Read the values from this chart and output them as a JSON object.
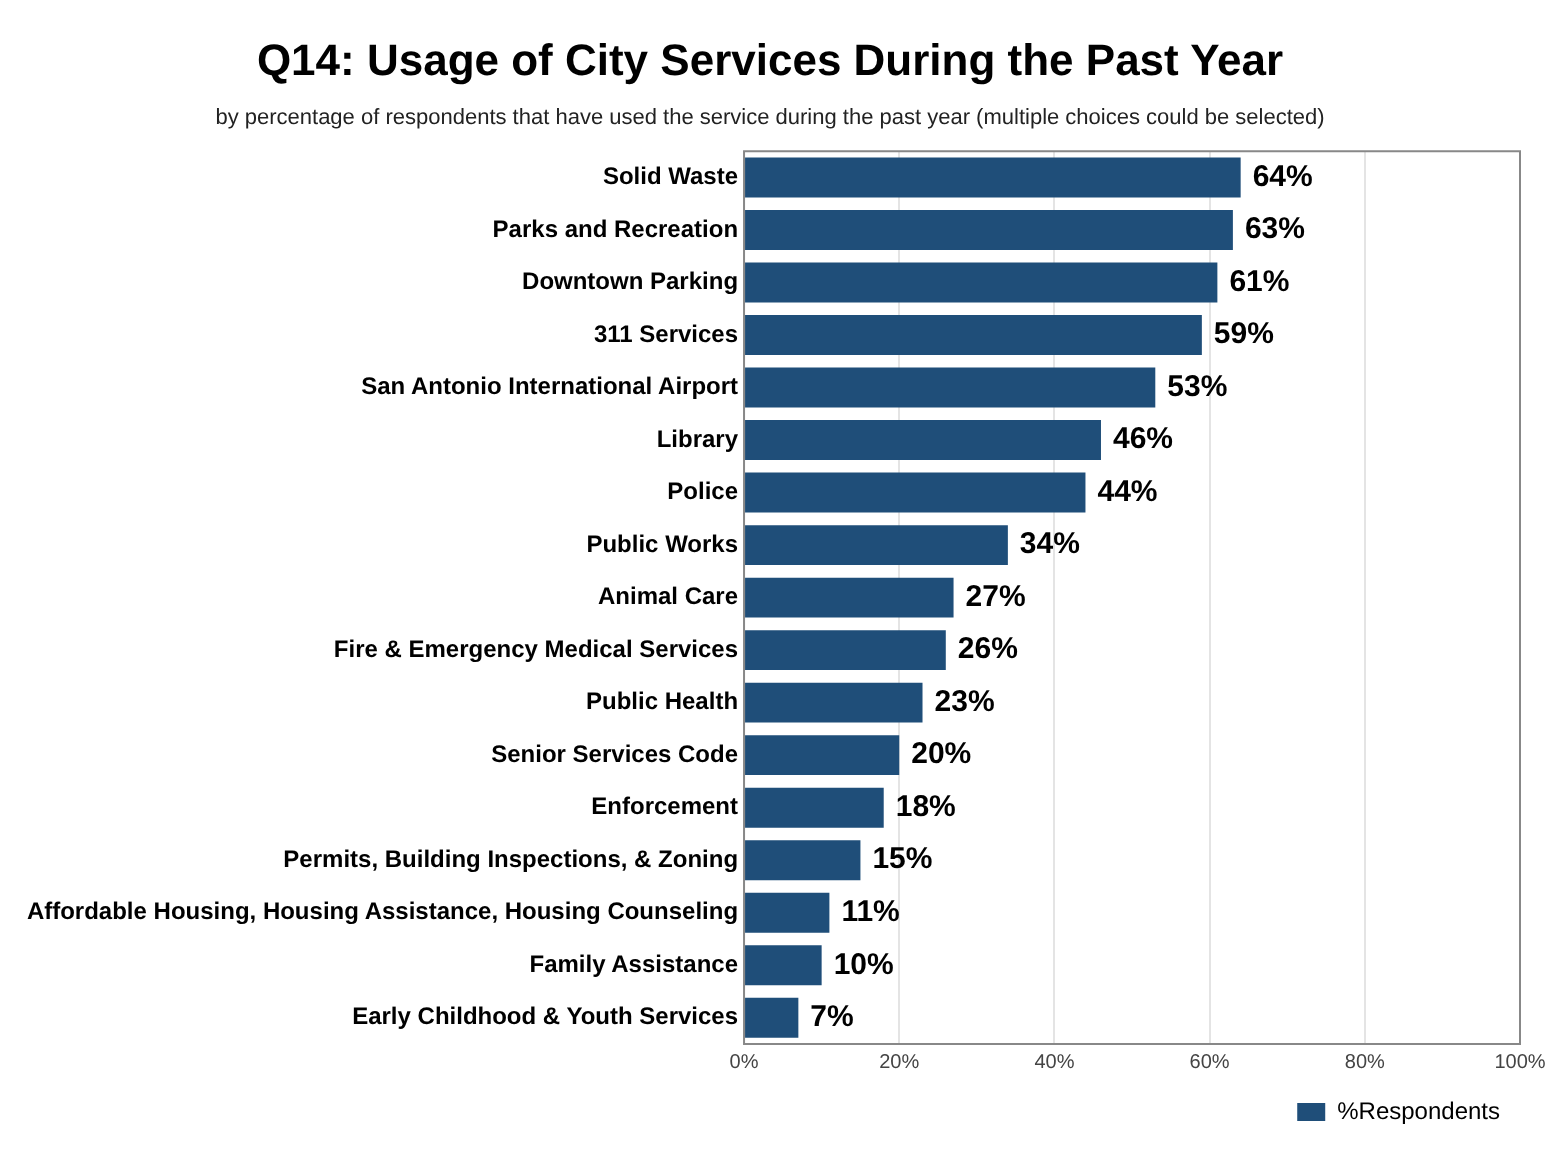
{
  "chart_data": {
    "type": "bar",
    "orientation": "horizontal",
    "title": "Q14: Usage of City Services During the Past Year",
    "subtitle": "by percentage of respondents that have used the service during the past year (multiple choices could be selected)",
    "categories": [
      "Solid Waste",
      "Parks and Recreation",
      "Downtown Parking",
      "311 Services",
      "San Antonio International Airport",
      "Library",
      "Police",
      "Public Works",
      "Animal Care",
      "Fire & Emergency Medical Services",
      "Public Health",
      "Senior Services Code",
      "Enforcement",
      "Permits, Building Inspections, & Zoning",
      "Affordable Housing, Housing Assistance, Housing Counseling",
      "Family Assistance",
      "Early Childhood & Youth Services"
    ],
    "series": [
      {
        "name": "%Respondents",
        "color": "#1f4e79",
        "values": [
          64,
          63,
          61,
          59,
          53,
          46,
          44,
          34,
          27,
          26,
          23,
          20,
          18,
          15,
          11,
          10,
          7
        ],
        "value_labels": [
          "64%",
          "63%",
          "61%",
          "59%",
          "53%",
          "46%",
          "44%",
          "34%",
          "27%",
          "26%",
          "23%",
          "20%",
          "18%",
          "15%",
          "11%",
          "10%",
          "7%"
        ]
      }
    ],
    "xlim": [
      0,
      100
    ],
    "xticks": [
      {
        "value": 0,
        "label": "0%"
      },
      {
        "value": 20,
        "label": "20%"
      },
      {
        "value": 40,
        "label": "40%"
      },
      {
        "value": 60,
        "label": "60%"
      },
      {
        "value": 80,
        "label": "80%"
      },
      {
        "value": 100,
        "label": "100%"
      }
    ],
    "grid": "x",
    "legend": "bottom right"
  }
}
